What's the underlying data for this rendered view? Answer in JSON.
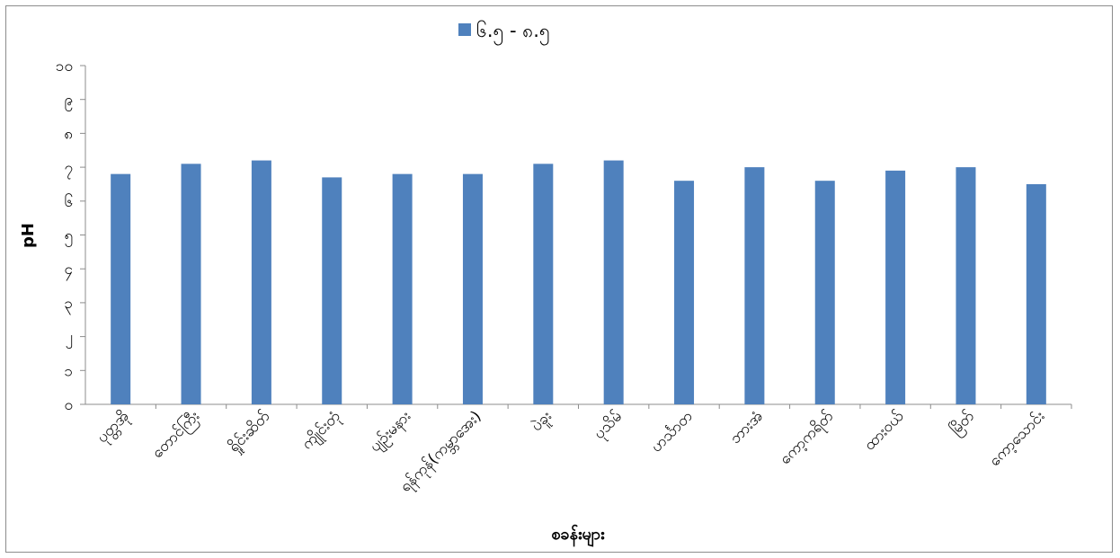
{
  "chart_data": {
    "type": "bar",
    "title": "",
    "xlabel": "စခန်းများ",
    "ylabel": "pH",
    "ylim": [
      0,
      10
    ],
    "yticks": [
      0,
      1,
      2,
      3,
      4,
      5,
      6,
      7,
      8,
      9,
      10
    ],
    "ytick_labels": [
      "၀",
      "၁",
      "၂",
      "၃",
      "၄",
      "၅",
      "၆",
      "၇",
      "၈",
      "၉",
      "၁၀"
    ],
    "grid": false,
    "legend_position": "top-center",
    "categories": [
      "ပုတ္တအို",
      "တောင်ကြီး",
      "ရှိုင်းဆိတ်",
      "ကျိုင်းတုံ",
      "ပျဉ်းမနား",
      "ရန်ကုန်(ကမ္ဘာအေး)",
      "ပဲခူး",
      "ပုသိမ်",
      "ဟင်္သာတ",
      "ဘားအံ",
      "ကော့ကရိတ်",
      "ထားဝယ်",
      "မြိတ်",
      "ကော့သောင်း"
    ],
    "series": [
      {
        "name": "၆.၅ - ၈.၅",
        "color": "#4f81bd",
        "values": [
          6.8,
          7.1,
          7.2,
          6.7,
          6.8,
          6.8,
          7.1,
          7.2,
          6.6,
          7.0,
          6.6,
          6.9,
          7.0,
          6.5
        ]
      }
    ]
  }
}
